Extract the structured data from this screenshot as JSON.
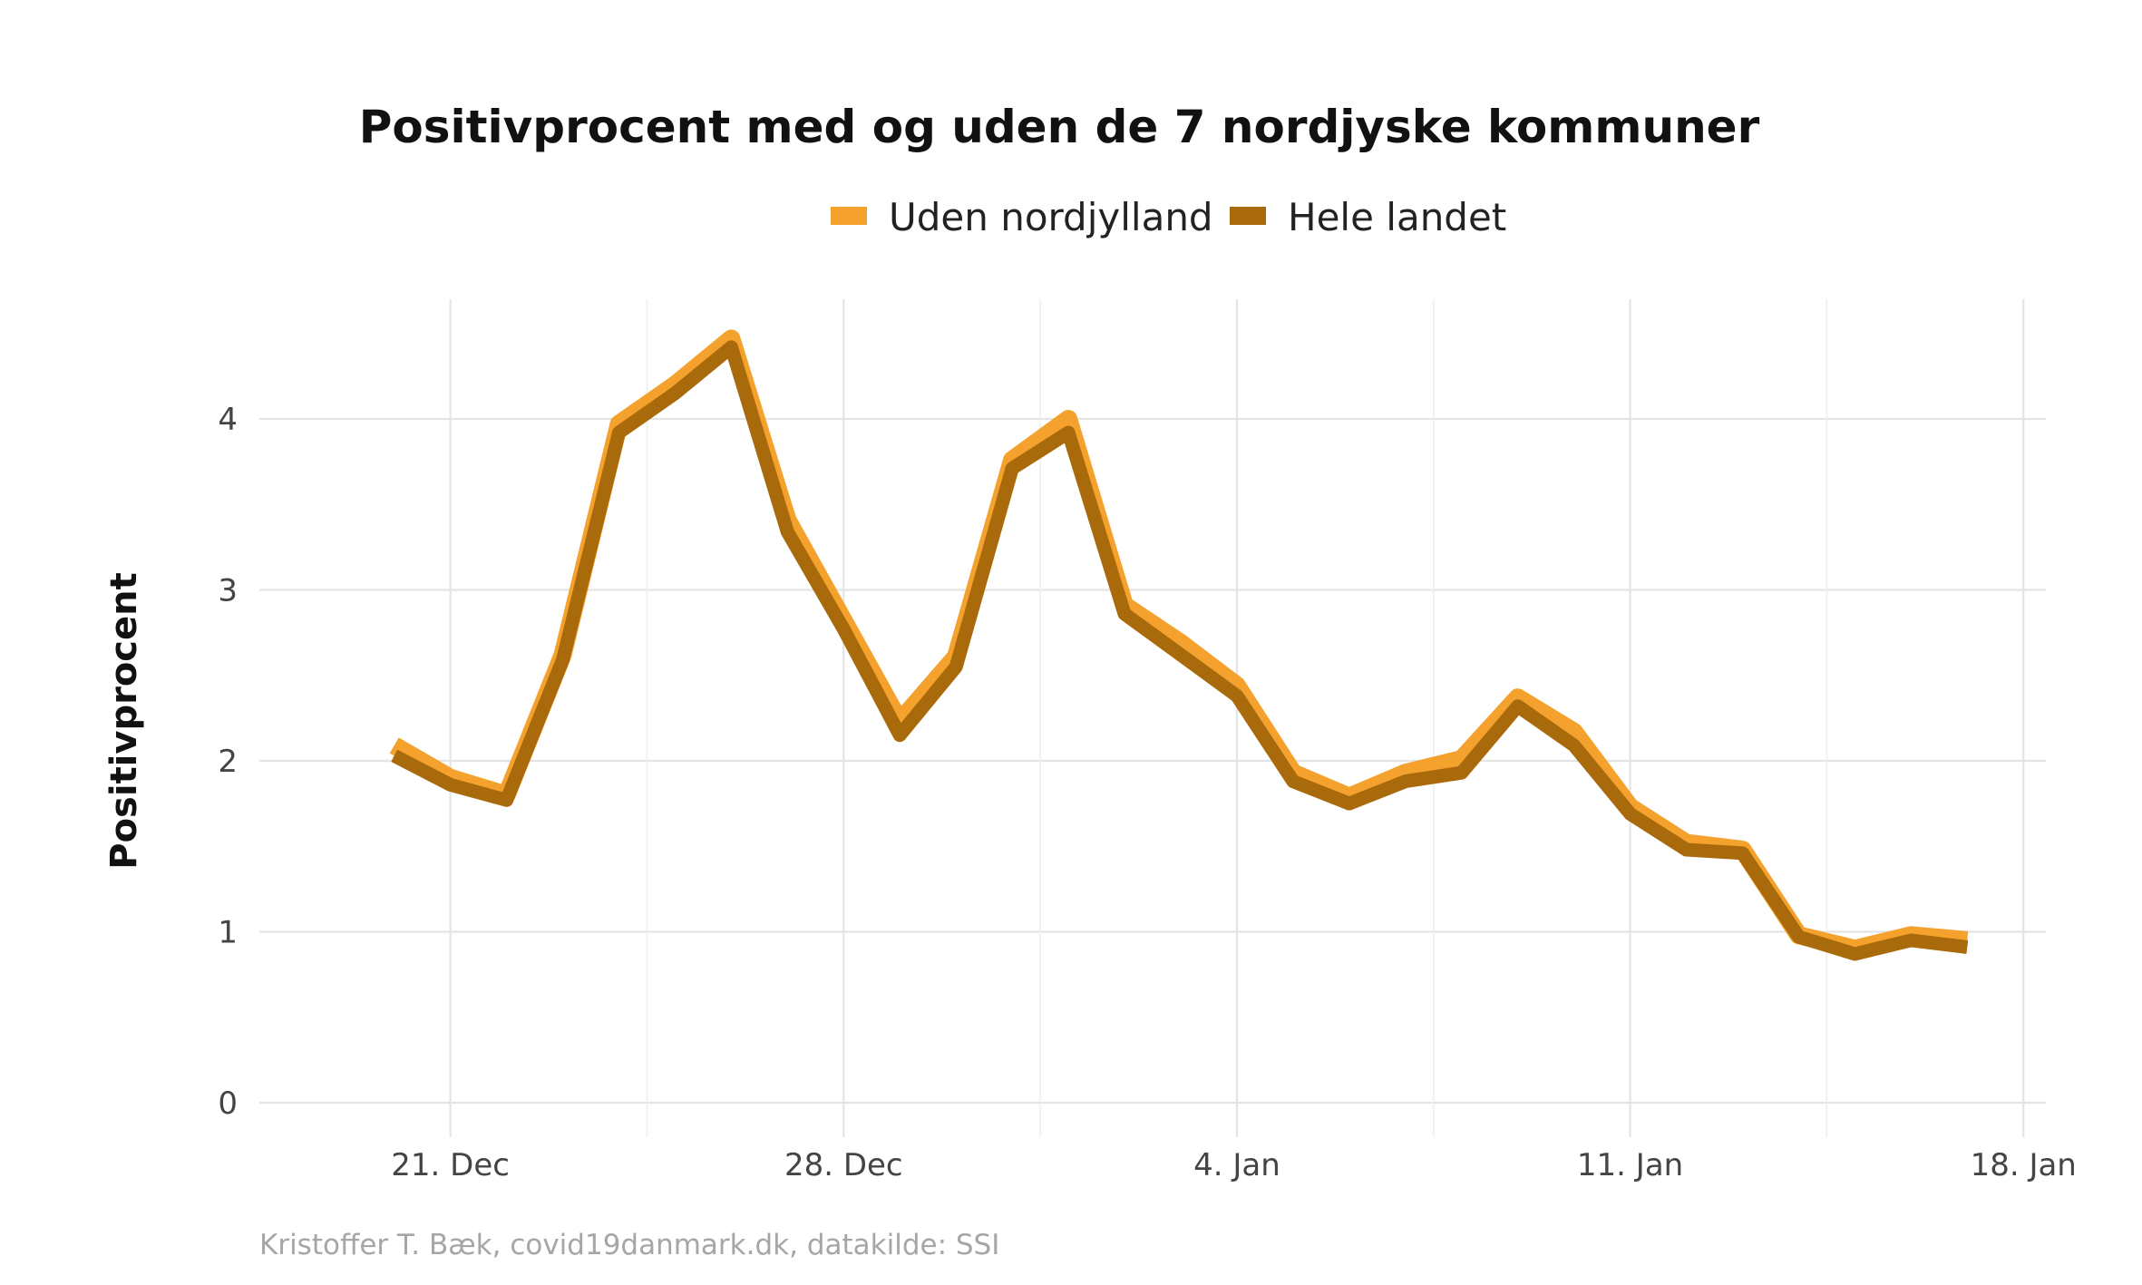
{
  "chart_data": {
    "type": "line",
    "title": "Positivprocent med og uden de 7 nordjyske kommuner",
    "xlabel": "",
    "ylabel": "Positivprocent",
    "caption": "Kristoffer T. Bæk, covid19danmark.dk, datakilde: SSI",
    "ylim": [
      0,
      4.7
    ],
    "yticks": [
      0,
      1,
      2,
      3,
      4
    ],
    "x_ticks": [
      {
        "day": 21,
        "label": "21. Dec"
      },
      {
        "day": 28,
        "label": "28. Dec"
      },
      {
        "day": 35,
        "label": "4. Jan"
      },
      {
        "day": 42,
        "label": "11. Jan"
      },
      {
        "day": 49,
        "label": "18. Jan"
      }
    ],
    "x_minor_days": [
      24.5,
      31.5,
      38.5,
      45.5
    ],
    "xlim": [
      17.6,
      49.4
    ],
    "legend_position": "top",
    "grid": true,
    "series": [
      {
        "name": "Uden nordjylland",
        "color": "#F4A22D",
        "x": [
          20,
          21,
          22,
          23,
          24,
          25,
          26,
          27,
          28,
          29,
          30,
          31,
          32,
          33,
          34,
          35,
          36,
          37,
          38,
          39,
          40,
          41,
          42,
          43,
          44,
          45,
          46,
          47,
          48
        ],
        "values": [
          2.09,
          1.9,
          1.8,
          2.62,
          3.97,
          4.2,
          4.47,
          3.41,
          2.82,
          2.23,
          2.61,
          3.76,
          4.0,
          2.91,
          2.69,
          2.44,
          1.93,
          1.79,
          1.93,
          2.01,
          2.37,
          2.17,
          1.73,
          1.52,
          1.48,
          0.98,
          0.9,
          0.98,
          0.95
        ]
      },
      {
        "name": "Hele landet",
        "color": "#A96A0B",
        "x": [
          20,
          21,
          22,
          23,
          24,
          25,
          26,
          27,
          28,
          29,
          30,
          31,
          32,
          33,
          34,
          35,
          36,
          37,
          38,
          39,
          40,
          41,
          42,
          43,
          44,
          45,
          46,
          47,
          48
        ],
        "values": [
          2.03,
          1.86,
          1.77,
          2.59,
          3.92,
          4.15,
          4.42,
          3.34,
          2.77,
          2.15,
          2.55,
          3.71,
          3.92,
          2.86,
          2.62,
          2.38,
          1.88,
          1.75,
          1.88,
          1.93,
          2.32,
          2.09,
          1.69,
          1.48,
          1.46,
          0.97,
          0.87,
          0.95,
          0.91
        ]
      }
    ]
  }
}
